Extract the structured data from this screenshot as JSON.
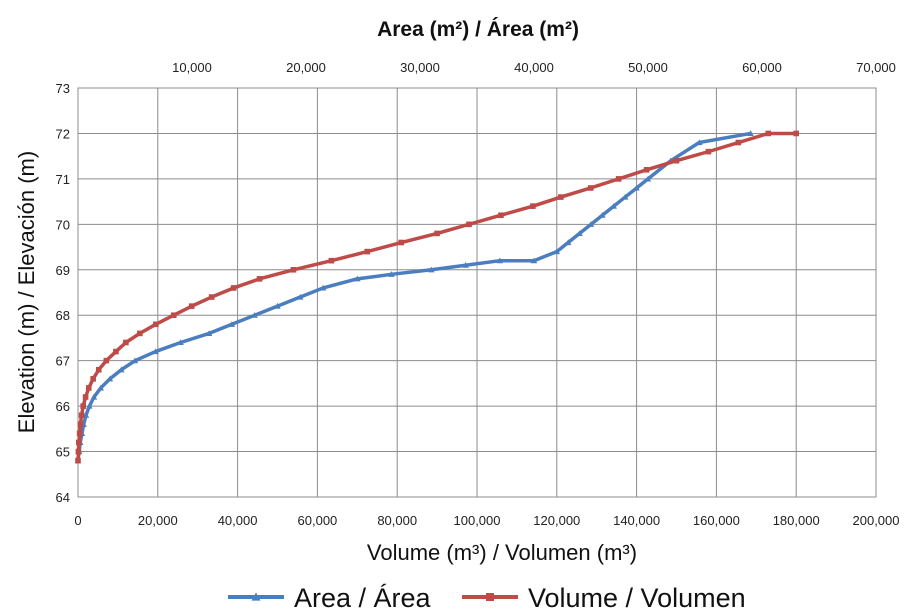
{
  "chart_data": {
    "type": "line",
    "top_xlabel": "Area (m²) / Área (m²)",
    "xlabel": "Volume (m³) / Volumen (m³)",
    "ylabel": "Elevation (m) / Elevación (m)",
    "ylim": [
      64,
      73
    ],
    "yticks": [
      "64",
      "65",
      "66",
      "67",
      "68",
      "69",
      "70",
      "71",
      "72",
      "73"
    ],
    "xlim_bottom": [
      0,
      200000
    ],
    "xticks_bottom": [
      "0",
      "20,000",
      "40,000",
      "60,000",
      "80,000",
      "100,000",
      "120,000",
      "140,000",
      "160,000",
      "180,000",
      "200,000"
    ],
    "xlim_top": [
      0,
      70000
    ],
    "xticks_top": [
      "10,000",
      "20,000",
      "30,000",
      "40,000",
      "50,000",
      "60,000",
      "70,000"
    ],
    "grid": true,
    "legend_position": "bottom",
    "series": [
      {
        "name": "Area / Área",
        "color": "#4a7ebf",
        "marker": "triangle",
        "axis": "top",
        "x": [
          0,
          100,
          200,
          350,
          500,
          700,
          1000,
          1400,
          2000,
          2800,
          3800,
          5000,
          6800,
          9000,
          11500,
          13500,
          15500,
          17500,
          19500,
          21500,
          24500,
          27500,
          31000,
          34000,
          37000,
          40000,
          42000,
          43000,
          44000,
          45000,
          46000,
          47000,
          48000,
          49000,
          50000,
          52000,
          54500,
          59000
        ],
        "y": [
          64.8,
          65.0,
          65.2,
          65.4,
          65.6,
          65.8,
          66.0,
          66.2,
          66.4,
          66.6,
          66.8,
          67.0,
          67.2,
          67.4,
          67.6,
          67.8,
          68.0,
          68.2,
          68.4,
          68.6,
          68.8,
          68.9,
          69.0,
          69.1,
          69.2,
          69.2,
          69.4,
          69.6,
          69.8,
          70.0,
          70.2,
          70.4,
          70.6,
          70.8,
          71.0,
          71.4,
          71.8,
          72.0
        ]
      },
      {
        "name": "Volume / Volumen",
        "color": "#be4b48",
        "marker": "square",
        "axis": "bottom",
        "x": [
          0,
          100,
          200,
          400,
          600,
          900,
          1300,
          1900,
          2700,
          3800,
          5200,
          7100,
          9500,
          12000,
          15500,
          19500,
          24000,
          28500,
          33500,
          39000,
          45500,
          54000,
          63500,
          72500,
          81000,
          90000,
          98000,
          106000,
          114000,
          121000,
          128500,
          135500,
          142500,
          150000,
          158000,
          165500,
          173000,
          180000
        ],
        "y": [
          64.8,
          65.0,
          65.2,
          65.4,
          65.6,
          65.8,
          66.0,
          66.2,
          66.4,
          66.6,
          66.8,
          67.0,
          67.2,
          67.4,
          67.6,
          67.8,
          68.0,
          68.2,
          68.4,
          68.6,
          68.8,
          69.0,
          69.2,
          69.4,
          69.6,
          69.8,
          70.0,
          70.2,
          70.4,
          70.6,
          70.8,
          71.0,
          71.2,
          71.4,
          71.6,
          71.8,
          72.0,
          72.0
        ]
      }
    ]
  }
}
